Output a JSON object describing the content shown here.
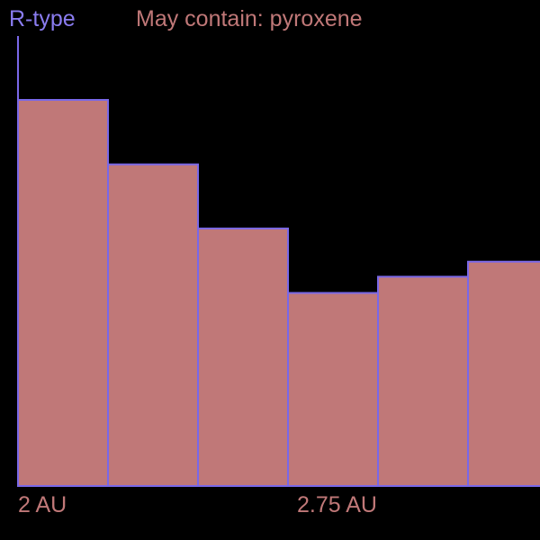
{
  "chart_data": {
    "type": "bar",
    "title": "R-type",
    "subtitle": "May contain: pyroxene",
    "xlabel": "",
    "ylabel": "",
    "x_tick_labels": [
      "2 AU",
      "2.75 AU"
    ],
    "values": [
      100,
      83.3,
      66.7,
      50,
      54.2,
      58.1
    ],
    "ylim": [
      0,
      100
    ],
    "grid": false,
    "colors": {
      "background": "#000000",
      "bar_fill": "#c07878",
      "bar_stroke": "#7a68e8",
      "axis": "#7a68e8",
      "title": "#8a7cf0",
      "subtitle": "#c07878",
      "tick_label": "#c07878"
    }
  }
}
